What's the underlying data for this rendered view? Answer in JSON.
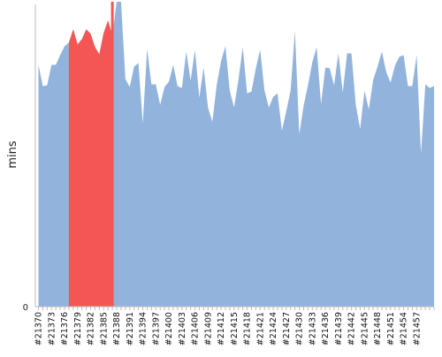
{
  "chart_data": {
    "type": "area",
    "ylabel": "mins",
    "y_tick_label": "0",
    "x_tick_labels": [
      "#21370",
      "#21373",
      "#21376",
      "#21379",
      "#21382",
      "#21385",
      "#21388",
      "#21391",
      "#21394",
      "#21397",
      "#21400",
      "#21403",
      "#21406",
      "#21409",
      "#21412",
      "#21415",
      "#21418",
      "#21421",
      "#21424",
      "#21427",
      "#21430",
      "#21433",
      "#21436",
      "#21439",
      "#21442",
      "#21445",
      "#21448",
      "#21451",
      "#21454",
      "#21457"
    ],
    "x_start": 21370,
    "x_end": 21458,
    "ylim": [
      0,
      340
    ],
    "series_colors": {
      "normal": "#92b3dc",
      "highlight": "#f45656",
      "marker": "#f45656",
      "axis": "#bbbbbb"
    },
    "highlight_range": [
      21377,
      21387
    ],
    "marker_build": 21387,
    "values": [
      272,
      248,
      249,
      272,
      272,
      283,
      293,
      297,
      312,
      295,
      301,
      312,
      307,
      292,
      284,
      308,
      322,
      305,
      343,
      343,
      256,
      247,
      270,
      274,
      206,
      290,
      250,
      250,
      227,
      247,
      253,
      272,
      248,
      246,
      287,
      254,
      289,
      235,
      269,
      224,
      208,
      249,
      276,
      293,
      243,
      224,
      255,
      292,
      240,
      242,
      268,
      289,
      243,
      224,
      236,
      240,
      198,
      220,
      243,
      310,
      194,
      226,
      249,
      275,
      292,
      228,
      269,
      268,
      249,
      285,
      241,
      285,
      285,
      227,
      200,
      243,
      222,
      255,
      270,
      287,
      264,
      252,
      271,
      281,
      283,
      248,
      248,
      283,
      172,
      250,
      246,
      248
    ]
  }
}
